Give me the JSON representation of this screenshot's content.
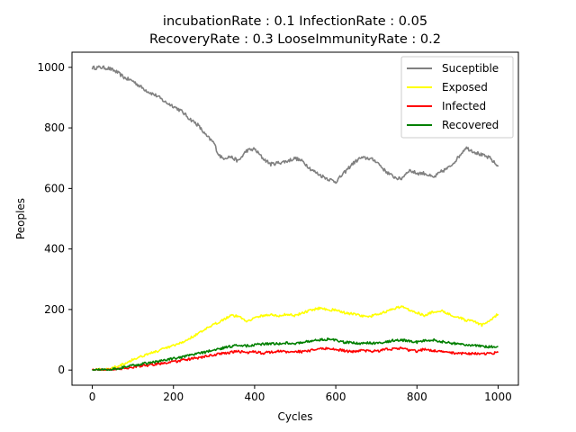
{
  "chart_data": {
    "type": "line",
    "title": [
      "incubationRate : 0.1 InfectionRate : 0.05",
      "RecoveryRate : 0.3 LooseImmunityRate : 0.2"
    ],
    "xlabel": "Cycles",
    "ylabel": "Peoples",
    "xlim": [
      -50,
      1050
    ],
    "ylim": [
      -50,
      1050
    ],
    "xticks": [
      0,
      200,
      400,
      600,
      800,
      1000
    ],
    "yticks": [
      0,
      200,
      400,
      600,
      800,
      1000
    ],
    "grid": false,
    "legend_position": "top-right",
    "series": [
      {
        "name": "Suceptible",
        "color": "#808080",
        "points": [
          [
            0,
            998
          ],
          [
            20,
            1000
          ],
          [
            40,
            997
          ],
          [
            60,
            985
          ],
          [
            80,
            965
          ],
          [
            100,
            955
          ],
          [
            120,
            935
          ],
          [
            140,
            918
          ],
          [
            160,
            905
          ],
          [
            180,
            885
          ],
          [
            200,
            872
          ],
          [
            220,
            855
          ],
          [
            240,
            830
          ],
          [
            260,
            810
          ],
          [
            280,
            775
          ],
          [
            300,
            750
          ],
          [
            310,
            715
          ],
          [
            320,
            700
          ],
          [
            340,
            705
          ],
          [
            360,
            690
          ],
          [
            380,
            725
          ],
          [
            400,
            730
          ],
          [
            420,
            700
          ],
          [
            440,
            680
          ],
          [
            460,
            685
          ],
          [
            480,
            690
          ],
          [
            500,
            700
          ],
          [
            520,
            688
          ],
          [
            540,
            662
          ],
          [
            560,
            645
          ],
          [
            580,
            632
          ],
          [
            600,
            622
          ],
          [
            620,
            650
          ],
          [
            640,
            680
          ],
          [
            660,
            700
          ],
          [
            680,
            700
          ],
          [
            700,
            690
          ],
          [
            720,
            660
          ],
          [
            740,
            640
          ],
          [
            760,
            630
          ],
          [
            780,
            660
          ],
          [
            800,
            650
          ],
          [
            820,
            650
          ],
          [
            840,
            635
          ],
          [
            860,
            655
          ],
          [
            880,
            670
          ],
          [
            900,
            700
          ],
          [
            920,
            735
          ],
          [
            940,
            722
          ],
          [
            960,
            710
          ],
          [
            980,
            700
          ],
          [
            1000,
            672
          ]
        ]
      },
      {
        "name": "Exposed",
        "color": "#ffff00",
        "points": [
          [
            0,
            0
          ],
          [
            40,
            3
          ],
          [
            60,
            12
          ],
          [
            80,
            22
          ],
          [
            100,
            35
          ],
          [
            120,
            45
          ],
          [
            140,
            55
          ],
          [
            160,
            62
          ],
          [
            180,
            72
          ],
          [
            200,
            80
          ],
          [
            220,
            90
          ],
          [
            240,
            105
          ],
          [
            260,
            120
          ],
          [
            280,
            135
          ],
          [
            300,
            150
          ],
          [
            320,
            165
          ],
          [
            340,
            180
          ],
          [
            360,
            178
          ],
          [
            380,
            162
          ],
          [
            400,
            172
          ],
          [
            420,
            180
          ],
          [
            440,
            183
          ],
          [
            460,
            178
          ],
          [
            480,
            185
          ],
          [
            500,
            180
          ],
          [
            520,
            190
          ],
          [
            540,
            198
          ],
          [
            560,
            205
          ],
          [
            580,
            200
          ],
          [
            600,
            198
          ],
          [
            620,
            190
          ],
          [
            640,
            186
          ],
          [
            660,
            180
          ],
          [
            680,
            175
          ],
          [
            700,
            183
          ],
          [
            720,
            192
          ],
          [
            740,
            200
          ],
          [
            760,
            210
          ],
          [
            780,
            200
          ],
          [
            800,
            190
          ],
          [
            820,
            180
          ],
          [
            840,
            192
          ],
          [
            860,
            196
          ],
          [
            880,
            185
          ],
          [
            900,
            175
          ],
          [
            920,
            165
          ],
          [
            940,
            160
          ],
          [
            960,
            148
          ],
          [
            980,
            165
          ],
          [
            1000,
            185
          ]
        ]
      },
      {
        "name": "Infected",
        "color": "#ff0000",
        "points": [
          [
            0,
            0
          ],
          [
            40,
            1
          ],
          [
            60,
            3
          ],
          [
            80,
            6
          ],
          [
            100,
            10
          ],
          [
            120,
            14
          ],
          [
            140,
            16
          ],
          [
            160,
            20
          ],
          [
            180,
            24
          ],
          [
            200,
            27
          ],
          [
            220,
            32
          ],
          [
            240,
            36
          ],
          [
            260,
            40
          ],
          [
            280,
            45
          ],
          [
            300,
            50
          ],
          [
            320,
            55
          ],
          [
            340,
            58
          ],
          [
            360,
            62
          ],
          [
            380,
            58
          ],
          [
            400,
            60
          ],
          [
            420,
            56
          ],
          [
            440,
            60
          ],
          [
            460,
            62
          ],
          [
            480,
            60
          ],
          [
            500,
            62
          ],
          [
            520,
            60
          ],
          [
            540,
            65
          ],
          [
            560,
            70
          ],
          [
            580,
            72
          ],
          [
            600,
            68
          ],
          [
            620,
            64
          ],
          [
            640,
            60
          ],
          [
            660,
            65
          ],
          [
            680,
            63
          ],
          [
            700,
            62
          ],
          [
            720,
            68
          ],
          [
            740,
            70
          ],
          [
            760,
            72
          ],
          [
            780,
            66
          ],
          [
            800,
            62
          ],
          [
            820,
            70
          ],
          [
            840,
            64
          ],
          [
            860,
            60
          ],
          [
            880,
            58
          ],
          [
            900,
            56
          ],
          [
            920,
            55
          ],
          [
            940,
            55
          ],
          [
            960,
            52
          ],
          [
            980,
            55
          ],
          [
            1000,
            58
          ]
        ]
      },
      {
        "name": "Recovered",
        "color": "#008000",
        "points": [
          [
            0,
            0
          ],
          [
            40,
            2
          ],
          [
            60,
            5
          ],
          [
            80,
            10
          ],
          [
            100,
            15
          ],
          [
            120,
            20
          ],
          [
            140,
            24
          ],
          [
            160,
            28
          ],
          [
            180,
            33
          ],
          [
            200,
            38
          ],
          [
            220,
            42
          ],
          [
            240,
            48
          ],
          [
            260,
            55
          ],
          [
            280,
            60
          ],
          [
            300,
            66
          ],
          [
            320,
            72
          ],
          [
            340,
            78
          ],
          [
            360,
            82
          ],
          [
            380,
            80
          ],
          [
            400,
            83
          ],
          [
            420,
            86
          ],
          [
            440,
            88
          ],
          [
            460,
            86
          ],
          [
            480,
            90
          ],
          [
            500,
            88
          ],
          [
            520,
            92
          ],
          [
            540,
            96
          ],
          [
            560,
            100
          ],
          [
            580,
            102
          ],
          [
            600,
            98
          ],
          [
            620,
            92
          ],
          [
            640,
            90
          ],
          [
            660,
            88
          ],
          [
            680,
            90
          ],
          [
            700,
            88
          ],
          [
            720,
            92
          ],
          [
            740,
            98
          ],
          [
            760,
            100
          ],
          [
            780,
            95
          ],
          [
            800,
            92
          ],
          [
            820,
            98
          ],
          [
            840,
            100
          ],
          [
            860,
            94
          ],
          [
            880,
            90
          ],
          [
            900,
            86
          ],
          [
            920,
            84
          ],
          [
            940,
            82
          ],
          [
            960,
            78
          ],
          [
            980,
            76
          ],
          [
            1000,
            78
          ]
        ]
      }
    ]
  }
}
